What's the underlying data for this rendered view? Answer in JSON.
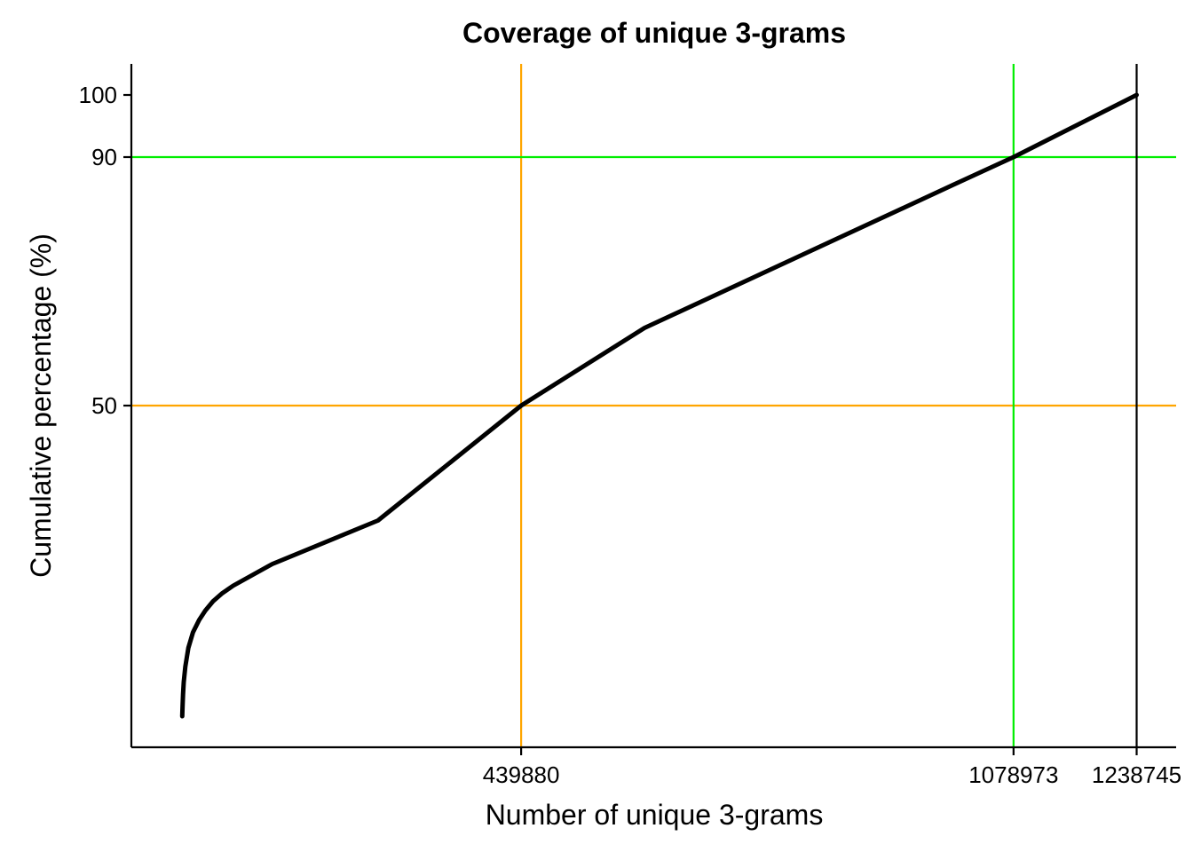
{
  "chart_data": {
    "type": "line",
    "title": "Coverage of unique 3-grams",
    "xlabel": "Number of unique 3-grams",
    "ylabel": "Cumulative percentage (%)",
    "xlim": [
      -66000,
      1290000
    ],
    "ylim": [
      -5,
      105
    ],
    "grid": false,
    "x_ticks": [
      439880,
      1078973,
      1238745
    ],
    "y_ticks": [
      50,
      90,
      100
    ],
    "reference_lines": [
      {
        "axis": "x",
        "value": 439880,
        "color": "#FFA500"
      },
      {
        "axis": "y",
        "value": 50,
        "color": "#FFA500"
      },
      {
        "axis": "x",
        "value": 1078973,
        "color": "#00EE00"
      },
      {
        "axis": "y",
        "value": 90,
        "color": "#00EE00"
      },
      {
        "axis": "x",
        "value": 1238745,
        "color": "#000000"
      }
    ],
    "series": [
      {
        "color": "#000000",
        "x": [
          0,
          500,
          1000,
          2000,
          4000,
          8000,
          14000,
          22000,
          30000,
          40000,
          52000,
          66000,
          117000,
          254000,
          439880,
          600000,
          800000,
          1000000,
          1078973,
          1238745
        ],
        "y": [
          0,
          1.7,
          3.5,
          5.5,
          8.0,
          11.0,
          13.5,
          15.5,
          17.0,
          18.5,
          19.8,
          21.0,
          24.5,
          31.5,
          50,
          62.5,
          74.0,
          85.5,
          90,
          100
        ]
      }
    ]
  }
}
